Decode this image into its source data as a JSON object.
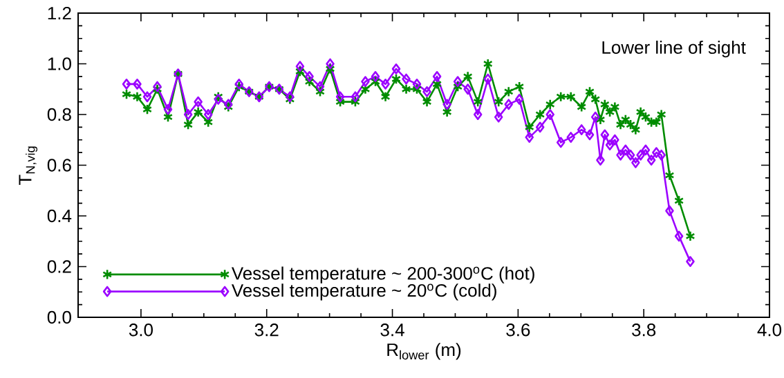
{
  "chart_data": {
    "type": "line",
    "xlabel": "R$_{lower}$ (m)",
    "ylabel": "T$_{N,vig}$",
    "annotations": [
      "Lower line of sight"
    ],
    "xlim": [
      2.9,
      4.0
    ],
    "ylim": [
      0,
      1.2
    ],
    "xticks": [
      {
        "value": 3.0,
        "label": "3.0"
      },
      {
        "value": 3.2,
        "label": "3.2"
      },
      {
        "value": 3.4,
        "label": "3.4"
      },
      {
        "value": 3.6,
        "label": "3.6"
      },
      {
        "value": 3.8,
        "label": "3.8"
      },
      {
        "value": 4.0,
        "label": "4.0"
      }
    ],
    "yticks": [
      {
        "value": 0,
        "label": "0.0"
      },
      {
        "value": 0.2,
        "label": "0.2"
      },
      {
        "value": 0.4,
        "label": "0.4"
      },
      {
        "value": 0.6,
        "label": "0.6"
      },
      {
        "value": 0.8,
        "label": "0.8"
      },
      {
        "value": 1.0,
        "label": "1.0"
      },
      {
        "value": 1.2,
        "label": "1.2"
      }
    ],
    "grid": false,
    "legend": "bottom left",
    "line_style": "solid",
    "x": [
      2.977,
      2.994,
      3.01,
      3.026,
      3.043,
      3.059,
      3.075,
      3.091,
      3.107,
      3.123,
      3.139,
      3.156,
      3.172,
      3.188,
      3.204,
      3.22,
      3.237,
      3.253,
      3.268,
      3.285,
      3.301,
      3.317,
      3.341,
      3.357,
      3.373,
      3.389,
      3.406,
      3.422,
      3.439,
      3.455,
      3.471,
      3.487,
      3.504,
      3.52,
      3.536,
      3.552,
      3.569,
      3.585,
      3.602,
      3.618,
      3.635,
      3.651,
      3.668,
      3.684,
      3.701,
      3.714,
      3.723,
      3.731,
      3.738,
      3.746,
      3.754,
      3.763,
      3.771,
      3.779,
      3.787,
      3.795,
      3.803,
      3.812,
      3.82,
      3.828,
      3.841,
      3.856,
      3.874
    ],
    "series": [
      {
        "name": "Vessel temperature ~ 200-300$^{o}$C (hot)",
        "color": "#008c00",
        "marker": "cross",
        "values": [
          0.88,
          0.87,
          0.82,
          0.9,
          0.79,
          0.96,
          0.76,
          0.81,
          0.77,
          0.87,
          0.83,
          0.91,
          0.89,
          0.87,
          0.91,
          0.9,
          0.86,
          0.97,
          0.93,
          0.89,
          0.98,
          0.85,
          0.85,
          0.9,
          0.93,
          0.87,
          0.94,
          0.9,
          0.9,
          0.85,
          0.92,
          0.81,
          0.91,
          0.95,
          0.85,
          1.0,
          0.85,
          0.89,
          0.91,
          0.75,
          0.8,
          0.84,
          0.87,
          0.87,
          0.83,
          0.89,
          0.86,
          0.78,
          0.84,
          0.81,
          0.83,
          0.76,
          0.78,
          0.76,
          0.74,
          0.81,
          0.79,
          0.77,
          0.77,
          0.8,
          0.56,
          0.46,
          0.32
        ]
      },
      {
        "name": "Vessel temperature ~ 20$^{o}$C (cold)",
        "color": "#9b00ff",
        "marker": "diamond",
        "values": [
          0.92,
          0.92,
          0.87,
          0.91,
          0.82,
          0.96,
          0.8,
          0.85,
          0.8,
          0.86,
          0.84,
          0.92,
          0.89,
          0.87,
          0.91,
          0.9,
          0.87,
          0.99,
          0.95,
          0.91,
          1.0,
          0.87,
          0.87,
          0.93,
          0.95,
          0.92,
          0.98,
          0.94,
          0.92,
          0.89,
          0.95,
          0.84,
          0.93,
          0.9,
          0.8,
          0.94,
          0.79,
          0.84,
          0.86,
          0.71,
          0.75,
          0.8,
          0.69,
          0.71,
          0.74,
          0.72,
          0.79,
          0.62,
          0.72,
          0.68,
          0.7,
          0.64,
          0.66,
          0.64,
          0.61,
          0.64,
          0.66,
          0.62,
          0.65,
          0.64,
          0.42,
          0.32,
          0.22
        ]
      }
    ]
  }
}
